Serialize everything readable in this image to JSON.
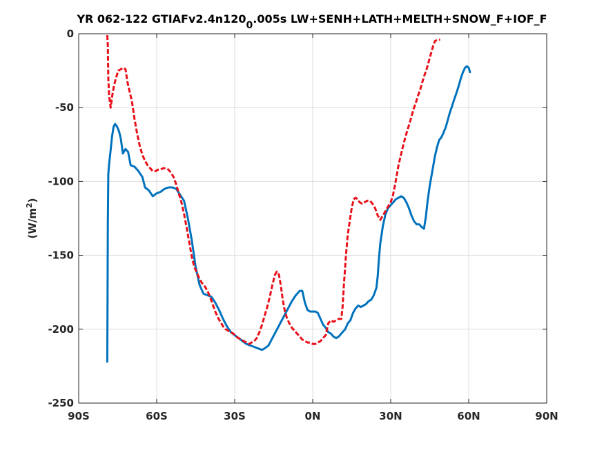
{
  "chart_data": {
    "type": "line",
    "title_main": "YR 062-122 GTIAFv2.4n120",
    "title_sub": "0",
    "title_tail": ".005s LW+SENH+LATH+MELTH+SNOW_F+IOF_F",
    "ylabel_main": "(W/m",
    "ylabel_sup": "2",
    "ylabel_close": ")",
    "xlim": [
      -90,
      90
    ],
    "ylim": [
      -250,
      0
    ],
    "xticks": [
      -90,
      -60,
      -30,
      0,
      30,
      60,
      90
    ],
    "xtick_labels": [
      "90S",
      "60S",
      "30S",
      "0N",
      "30N",
      "60N",
      "90N"
    ],
    "yticks": [
      0,
      -50,
      -100,
      -150,
      -200,
      -250
    ],
    "ytick_labels": [
      "0",
      "-50",
      "-100",
      "-150",
      "-200",
      "-250"
    ],
    "grid": true,
    "series": [
      {
        "color": "#0072BD",
        "style": "solid",
        "points": [
          [
            -79,
            -222
          ],
          [
            -78.9,
            -180
          ],
          [
            -78.8,
            -130
          ],
          [
            -78.6,
            -95
          ],
          [
            -78.3,
            -88
          ],
          [
            -77.8,
            -80
          ],
          [
            -77.2,
            -70
          ],
          [
            -76.6,
            -63
          ],
          [
            -76,
            -61
          ],
          [
            -75.2,
            -63
          ],
          [
            -74.5,
            -66
          ],
          [
            -73.8,
            -71
          ],
          [
            -73,
            -81
          ],
          [
            -72,
            -78
          ],
          [
            -71,
            -80
          ],
          [
            -70,
            -89
          ],
          [
            -68.5,
            -90
          ],
          [
            -67,
            -93
          ],
          [
            -65.5,
            -97
          ],
          [
            -64.5,
            -104
          ],
          [
            -63,
            -106
          ],
          [
            -61.5,
            -110
          ],
          [
            -60,
            -108
          ],
          [
            -58.5,
            -107
          ],
          [
            -57,
            -105
          ],
          [
            -55.5,
            -104
          ],
          [
            -54,
            -104
          ],
          [
            -52.5,
            -105
          ],
          [
            -51,
            -109
          ],
          [
            -49.5,
            -113
          ],
          [
            -48,
            -125
          ],
          [
            -46.5,
            -140
          ],
          [
            -45,
            -158
          ],
          [
            -43.5,
            -170
          ],
          [
            -42,
            -176
          ],
          [
            -40.5,
            -177
          ],
          [
            -39,
            -178
          ],
          [
            -37.5,
            -182
          ],
          [
            -36,
            -187
          ],
          [
            -34.5,
            -193
          ],
          [
            -33,
            -198
          ],
          [
            -31.5,
            -202
          ],
          [
            -30,
            -204
          ],
          [
            -28.5,
            -206
          ],
          [
            -27,
            -208
          ],
          [
            -25.5,
            -210
          ],
          [
            -24,
            -211
          ],
          [
            -22.5,
            -212
          ],
          [
            -21,
            -213
          ],
          [
            -19.5,
            -214
          ],
          [
            -18.5,
            -213
          ],
          [
            -17,
            -211
          ],
          [
            -15.5,
            -206
          ],
          [
            -14,
            -201
          ],
          [
            -12.5,
            -196
          ],
          [
            -11,
            -191
          ],
          [
            -9.5,
            -186
          ],
          [
            -8,
            -181
          ],
          [
            -6.5,
            -177
          ],
          [
            -5,
            -174
          ],
          [
            -4,
            -174
          ],
          [
            -3,
            -182
          ],
          [
            -2,
            -187
          ],
          [
            -1,
            -188
          ],
          [
            0,
            -188
          ],
          [
            1,
            -188
          ],
          [
            2,
            -189
          ],
          [
            3,
            -193
          ],
          [
            4,
            -197
          ],
          [
            5,
            -199
          ],
          [
            6,
            -202
          ],
          [
            7,
            -203
          ],
          [
            8,
            -205
          ],
          [
            9,
            -206
          ],
          [
            10,
            -205
          ],
          [
            11,
            -203
          ],
          [
            12.5,
            -200
          ],
          [
            13.5,
            -196
          ],
          [
            14.5,
            -194
          ],
          [
            15.5,
            -189
          ],
          [
            16.5,
            -186
          ],
          [
            17.5,
            -184
          ],
          [
            18.5,
            -185
          ],
          [
            19.5,
            -184
          ],
          [
            20.5,
            -183
          ],
          [
            21.5,
            -181
          ],
          [
            22.5,
            -180
          ],
          [
            23.5,
            -177
          ],
          [
            24.5,
            -172
          ],
          [
            25,
            -164
          ],
          [
            25.5,
            -152
          ],
          [
            26,
            -142
          ],
          [
            27,
            -130
          ],
          [
            28,
            -122
          ],
          [
            29,
            -118
          ],
          [
            30,
            -116
          ],
          [
            31,
            -114
          ],
          [
            32,
            -112
          ],
          [
            33,
            -111
          ],
          [
            34,
            -110
          ],
          [
            35,
            -111
          ],
          [
            36,
            -114
          ],
          [
            37,
            -118
          ],
          [
            38,
            -123
          ],
          [
            39,
            -127
          ],
          [
            40,
            -129
          ],
          [
            41,
            -129
          ],
          [
            42,
            -131
          ],
          [
            42.8,
            -132
          ],
          [
            43.5,
            -124
          ],
          [
            44.2,
            -113
          ],
          [
            45,
            -103
          ],
          [
            46,
            -93
          ],
          [
            47,
            -83
          ],
          [
            47.8,
            -77
          ],
          [
            48.6,
            -72
          ],
          [
            49.5,
            -70
          ],
          [
            50.3,
            -67
          ],
          [
            51.2,
            -63
          ],
          [
            52,
            -58
          ],
          [
            52.8,
            -53
          ],
          [
            53.6,
            -49
          ],
          [
            54.5,
            -44
          ],
          [
            55.3,
            -40
          ],
          [
            56.2,
            -35
          ],
          [
            57,
            -30
          ],
          [
            57.8,
            -26
          ],
          [
            58.6,
            -23
          ],
          [
            59.3,
            -22
          ],
          [
            60,
            -23
          ],
          [
            60.5,
            -26
          ]
        ]
      },
      {
        "color": "#E8111A",
        "style": "dashed",
        "points": [
          [
            -79,
            -1
          ],
          [
            -78.8,
            -8
          ],
          [
            -78.6,
            -30
          ],
          [
            -78.3,
            -42
          ],
          [
            -77.7,
            -50
          ],
          [
            -77.1,
            -42
          ],
          [
            -76.5,
            -36
          ],
          [
            -75.7,
            -30
          ],
          [
            -74.8,
            -25
          ],
          [
            -73.8,
            -24
          ],
          [
            -72.8,
            -23
          ],
          [
            -72,
            -24
          ],
          [
            -71.2,
            -33
          ],
          [
            -70.3,
            -40
          ],
          [
            -69.5,
            -46
          ],
          [
            -68.5,
            -58
          ],
          [
            -67.5,
            -68
          ],
          [
            -66.5,
            -76
          ],
          [
            -65.5,
            -82
          ],
          [
            -64.5,
            -86
          ],
          [
            -63.5,
            -89
          ],
          [
            -62.5,
            -91
          ],
          [
            -61.5,
            -93
          ],
          [
            -60.5,
            -93
          ],
          [
            -59.5,
            -92
          ],
          [
            -58.5,
            -92
          ],
          [
            -57.5,
            -91
          ],
          [
            -56.5,
            -91
          ],
          [
            -55.5,
            -92
          ],
          [
            -54.5,
            -94
          ],
          [
            -53.5,
            -97
          ],
          [
            -52.5,
            -102
          ],
          [
            -51.5,
            -108
          ],
          [
            -50.5,
            -114
          ],
          [
            -49.5,
            -122
          ],
          [
            -48.5,
            -131
          ],
          [
            -47.5,
            -141
          ],
          [
            -46.5,
            -151
          ],
          [
            -45.5,
            -158
          ],
          [
            -44.5,
            -162
          ],
          [
            -43.5,
            -166
          ],
          [
            -42.5,
            -169
          ],
          [
            -41.5,
            -171
          ],
          [
            -40.5,
            -174
          ],
          [
            -39.5,
            -178
          ],
          [
            -38.5,
            -183
          ],
          [
            -37.5,
            -188
          ],
          [
            -36.5,
            -192
          ],
          [
            -35.5,
            -195
          ],
          [
            -34.5,
            -198
          ],
          [
            -33.5,
            -200
          ],
          [
            -32.5,
            -201
          ],
          [
            -31.5,
            -202
          ],
          [
            -30.5,
            -203
          ],
          [
            -29.5,
            -205
          ],
          [
            -28.5,
            -206
          ],
          [
            -27.5,
            -207
          ],
          [
            -26.5,
            -208
          ],
          [
            -25.5,
            -209
          ],
          [
            -24.5,
            -210
          ],
          [
            -23.5,
            -209
          ],
          [
            -22.5,
            -208
          ],
          [
            -21.5,
            -206
          ],
          [
            -20.5,
            -202
          ],
          [
            -19.5,
            -197
          ],
          [
            -18.5,
            -191
          ],
          [
            -17.5,
            -185
          ],
          [
            -16.5,
            -178
          ],
          [
            -15.5,
            -170
          ],
          [
            -14.5,
            -163
          ],
          [
            -13.8,
            -161
          ],
          [
            -13,
            -163
          ],
          [
            -12.3,
            -170
          ],
          [
            -11.6,
            -179
          ],
          [
            -10.8,
            -187
          ],
          [
            -10,
            -192
          ],
          [
            -9,
            -196
          ],
          [
            -8,
            -199
          ],
          [
            -7,
            -201
          ],
          [
            -6,
            -203
          ],
          [
            -5,
            -205
          ],
          [
            -4,
            -207
          ],
          [
            -3,
            -208
          ],
          [
            -2,
            -209
          ],
          [
            -1,
            -209
          ],
          [
            0,
            -210
          ],
          [
            1,
            -210
          ],
          [
            2,
            -209
          ],
          [
            3,
            -208
          ],
          [
            4,
            -206
          ],
          [
            5,
            -204
          ],
          [
            5.5,
            -200
          ],
          [
            6,
            -196
          ],
          [
            7,
            -194
          ],
          [
            8,
            -195
          ],
          [
            9,
            -194
          ],
          [
            10,
            -193
          ],
          [
            11,
            -193
          ],
          [
            11.5,
            -185
          ],
          [
            12,
            -170
          ],
          [
            12.8,
            -150
          ],
          [
            13.5,
            -136
          ],
          [
            14.3,
            -126
          ],
          [
            15,
            -118
          ],
          [
            15.8,
            -112
          ],
          [
            16.5,
            -111
          ],
          [
            17.3,
            -112
          ],
          [
            18,
            -114
          ],
          [
            19,
            -115
          ],
          [
            20,
            -114
          ],
          [
            21,
            -113
          ],
          [
            22,
            -113
          ],
          [
            23,
            -115
          ],
          [
            24,
            -118
          ],
          [
            25,
            -123
          ],
          [
            26,
            -126
          ],
          [
            27,
            -123
          ],
          [
            28,
            -120
          ],
          [
            29,
            -117
          ],
          [
            30,
            -114
          ],
          [
            30.8,
            -110
          ],
          [
            31.6,
            -103
          ],
          [
            32.3,
            -96
          ],
          [
            33,
            -89
          ],
          [
            33.8,
            -83
          ],
          [
            34.6,
            -77
          ],
          [
            35.5,
            -71
          ],
          [
            36.3,
            -66
          ],
          [
            37.2,
            -61
          ],
          [
            38,
            -56
          ],
          [
            38.8,
            -51
          ],
          [
            39.6,
            -47
          ],
          [
            40.5,
            -42
          ],
          [
            41.3,
            -38
          ],
          [
            42.1,
            -33
          ],
          [
            43,
            -28
          ],
          [
            43.8,
            -24
          ],
          [
            44.6,
            -19
          ],
          [
            45.4,
            -14
          ],
          [
            46.2,
            -9
          ],
          [
            47,
            -5
          ],
          [
            48,
            -4
          ],
          [
            49,
            -4
          ]
        ]
      }
    ]
  }
}
